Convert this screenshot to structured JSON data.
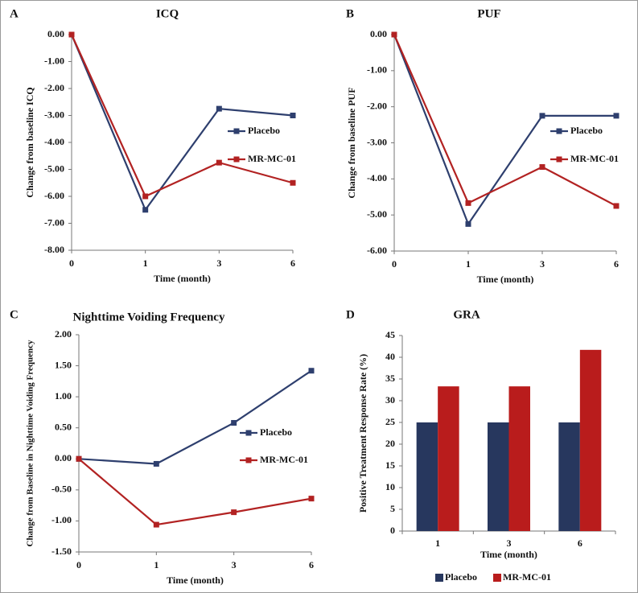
{
  "chart_data": [
    {
      "type": "line",
      "panel": "A",
      "title": "ICQ",
      "x_label": "Time (month)",
      "y_label": "Change from baseline ICQ",
      "categories": [
        "0",
        "1",
        "3",
        "6"
      ],
      "series": [
        {
          "name": "Placebo",
          "color": "#2e3f6e",
          "values": [
            0,
            -6.5,
            -2.75,
            -3.0
          ]
        },
        {
          "name": "MR-MC-01",
          "color": "#b22222",
          "values": [
            0,
            -6.0,
            -4.75,
            -5.5
          ]
        }
      ],
      "ylim": [
        -8,
        0
      ],
      "yticks": [
        {
          "value": 0,
          "label": "0.00"
        },
        {
          "value": -1,
          "label": "-1.00"
        },
        {
          "value": -2,
          "label": "-2.00"
        },
        {
          "value": -3,
          "label": "-3.00"
        },
        {
          "value": -4,
          "label": "-4.00"
        },
        {
          "value": -5,
          "label": "-5.00"
        },
        {
          "value": -6,
          "label": "-6.00"
        },
        {
          "value": -7,
          "label": "-7.00"
        },
        {
          "value": -8,
          "label": "-8.00"
        }
      ],
      "legend": "right"
    },
    {
      "type": "line",
      "panel": "B",
      "title": "PUF",
      "x_label": "Time (month)",
      "y_label": "Change from baseline PUF",
      "categories": [
        "0",
        "1",
        "3",
        "6"
      ],
      "series": [
        {
          "name": "Placebo",
          "color": "#2e3f6e",
          "values": [
            0,
            -5.25,
            -2.25,
            -2.25
          ]
        },
        {
          "name": "MR-MC-01",
          "color": "#b22222",
          "values": [
            0,
            -4.67,
            -3.67,
            -4.75
          ]
        }
      ],
      "ylim": [
        -6,
        0
      ],
      "yticks": [
        {
          "value": 0,
          "label": "0.00"
        },
        {
          "value": -1,
          "label": "-1.00"
        },
        {
          "value": -2,
          "label": "-2.00"
        },
        {
          "value": -3,
          "label": "-3.00"
        },
        {
          "value": -4,
          "label": "-4.00"
        },
        {
          "value": -5,
          "label": "-5.00"
        },
        {
          "value": -6,
          "label": "-6.00"
        }
      ],
      "legend": "right"
    },
    {
      "type": "line",
      "panel": "C",
      "title": "Nighttime Voiding Frequency",
      "x_label": "Time (month)",
      "y_label": "Change from Baseline in Nighttime Voiding Frequency",
      "categories": [
        "0",
        "1",
        "3",
        "6"
      ],
      "series": [
        {
          "name": "Placebo",
          "color": "#2e3f6e",
          "values": [
            0,
            -0.08,
            0.58,
            1.42
          ]
        },
        {
          "name": "MR-MC-01",
          "color": "#b22222",
          "values": [
            0,
            -1.06,
            -0.86,
            -0.64
          ]
        }
      ],
      "ylim": [
        -1.5,
        2
      ],
      "yticks": [
        {
          "value": 2,
          "label": "2.00"
        },
        {
          "value": 1.5,
          "label": "1.50"
        },
        {
          "value": 1,
          "label": "1.00"
        },
        {
          "value": 0.5,
          "label": "0.50"
        },
        {
          "value": 0,
          "label": "0.00"
        },
        {
          "value": -0.5,
          "label": "-0.50"
        },
        {
          "value": -1,
          "label": "-1.00"
        },
        {
          "value": -1.5,
          "label": "-1.50"
        }
      ],
      "legend": "right"
    },
    {
      "type": "bar",
      "panel": "D",
      "title": "GRA",
      "x_label": "Time (month)",
      "y_label": "Positive Treatment Response Rate (%)",
      "categories": [
        "1",
        "3",
        "6"
      ],
      "series": [
        {
          "name": "Placebo",
          "color": "#27375e",
          "values": [
            25,
            25,
            25
          ]
        },
        {
          "name": "MR-MC-01",
          "color": "#b91c1c",
          "values": [
            33.3,
            33.3,
            41.7
          ]
        }
      ],
      "ylim": [
        0,
        45
      ],
      "yticks": [
        0,
        5,
        10,
        15,
        20,
        25,
        30,
        35,
        40,
        45
      ],
      "legend": "bottom"
    }
  ]
}
